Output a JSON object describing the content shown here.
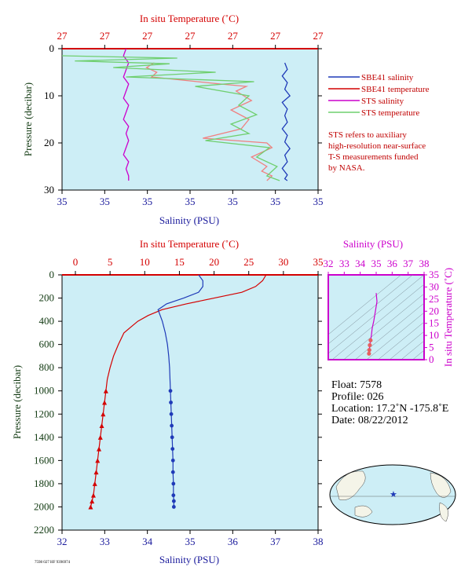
{
  "chart_data": [
    {
      "type": "line",
      "title": "",
      "top_axis_label": "In situ Temperature (˚C)",
      "top_tick_labels": [
        "27",
        "27",
        "27",
        "27",
        "27",
        "27",
        "27"
      ],
      "xlabel": "Salinity (PSU)",
      "bottom_tick_labels": [
        "35",
        "35",
        "35",
        "35",
        "35",
        "35",
        "35"
      ],
      "ylabel": "Pressure (decibar)",
      "ylim": [
        30,
        0
      ],
      "yticks": [
        0,
        10,
        20,
        30
      ],
      "grid": false,
      "series": [
        {
          "name": "SBE41 salinity",
          "color": "#1f3ab8",
          "x_rel": [
            0.87,
            0.88,
            0.86,
            0.88,
            0.87,
            0.89,
            0.86,
            0.88,
            0.87,
            0.88,
            0.86,
            0.88,
            0.87,
            0.89,
            0.87,
            0.88,
            0.86,
            0.88,
            0.87,
            0.88
          ],
          "y": [
            3,
            4.4,
            5.8,
            7.2,
            8.6,
            10,
            11.4,
            12.8,
            14.2,
            15.6,
            17,
            18.4,
            19.8,
            21.2,
            22.6,
            24,
            25.4,
            26.8,
            27.6,
            28
          ]
        },
        {
          "name": "SBE41 temperature",
          "color": "#f08080",
          "x_rel": [
            0.36,
            0.33,
            0.37,
            0.35,
            0.53,
            0.62,
            0.72,
            0.68,
            0.74,
            0.66,
            0.73,
            0.7,
            0.55,
            0.8,
            0.82,
            0.74,
            0.8,
            0.78,
            0.82,
            0.8
          ],
          "y": [
            3,
            4,
            5,
            6,
            7,
            7.5,
            8,
            9,
            11,
            13,
            15,
            17,
            19,
            20,
            21,
            23,
            25,
            26,
            27,
            28
          ]
        },
        {
          "name": "STS salinity",
          "color": "#cc00cc",
          "x_rel": [
            0.25,
            0.24,
            0.26,
            0.25,
            0.24,
            0.26,
            0.25,
            0.24,
            0.26,
            0.25,
            0.24,
            0.26,
            0.25,
            0.26,
            0.25,
            0.24,
            0.26,
            0.25,
            0.26,
            0.26
          ],
          "y": [
            0,
            1.5,
            3,
            4.5,
            6,
            7.5,
            9,
            10.5,
            12,
            13.5,
            15,
            16.5,
            18,
            19.5,
            21,
            22.5,
            24,
            25.5,
            27,
            28
          ]
        },
        {
          "name": "STS temperature",
          "color": "#6fcf6f",
          "x_rel": [
            0.0,
            0.45,
            0.05,
            0.42,
            0.2,
            0.6,
            0.25,
            0.75,
            0.52,
            0.73,
            0.69,
            0.76,
            0.66,
            0.73,
            0.56,
            0.81,
            0.76,
            0.84,
            0.8,
            0.85
          ],
          "y": [
            1.5,
            2,
            2.6,
            3.2,
            4,
            5,
            6,
            7,
            8,
            10,
            12,
            14,
            16,
            18,
            19.5,
            21,
            23,
            25,
            27,
            28
          ]
        }
      ]
    },
    {
      "type": "line",
      "title": "",
      "top_axis_label": "In situ Temperature (˚C)",
      "top_tick_labels": [
        "0",
        "5",
        "10",
        "15",
        "20",
        "25",
        "30",
        "35"
      ],
      "xlim_temperature": [
        0,
        35
      ],
      "xlabel": "Salinity (PSU)",
      "bottom_tick_labels": [
        "32",
        "33",
        "34",
        "35",
        "36",
        "37",
        "38"
      ],
      "xlim_salinity": [
        32,
        38
      ],
      "ylabel": "Pressure (decibar)",
      "ylim": [
        2200,
        0
      ],
      "yticks": [
        0,
        200,
        400,
        600,
        800,
        1000,
        1200,
        1400,
        1600,
        1800,
        2000,
        2200
      ],
      "grid": false,
      "series": [
        {
          "name": "Temperature",
          "color": "#d40000",
          "marker": "triangle",
          "x": [
            27.5,
            27.0,
            26.0,
            24.0,
            20.0,
            16.0,
            12.5,
            10.5,
            9.0,
            8.0,
            7.0,
            6.2,
            5.5,
            5.0,
            4.6,
            4.4,
            4.2,
            4.0,
            3.8,
            3.6,
            3.4,
            3.2,
            3.0,
            2.8,
            2.6,
            2.4,
            2.2
          ],
          "y": [
            0,
            50,
            100,
            150,
            200,
            250,
            300,
            350,
            400,
            450,
            500,
            600,
            700,
            800,
            900,
            1000,
            1100,
            1200,
            1300,
            1400,
            1500,
            1600,
            1700,
            1800,
            1900,
            1950,
            2000
          ]
        },
        {
          "name": "Salinity",
          "color": "#1f3ab8",
          "marker": "circle",
          "x": [
            35.2,
            35.3,
            35.3,
            35.2,
            34.85,
            34.45,
            34.25,
            34.3,
            34.35,
            34.42,
            34.47,
            34.5,
            34.52,
            34.53,
            34.54,
            34.55,
            34.56,
            34.57,
            34.58,
            34.59,
            34.6,
            34.6,
            34.61,
            34.61,
            34.62,
            34.62
          ],
          "y": [
            0,
            50,
            100,
            150,
            200,
            250,
            300,
            350,
            400,
            500,
            600,
            700,
            800,
            900,
            1000,
            1100,
            1200,
            1300,
            1400,
            1500,
            1600,
            1700,
            1800,
            1900,
            1950,
            2000
          ]
        }
      ]
    },
    {
      "type": "scatter",
      "title": "",
      "xlabel": "Salinity (PSU)",
      "x_tick_labels": [
        "32",
        "33",
        "34",
        "35",
        "36",
        "37",
        "38"
      ],
      "xlim": [
        32,
        38
      ],
      "ylabel": "In situ Temperature (˚C)",
      "y_tick_labels": [
        "0",
        "5",
        "10",
        "15",
        "20",
        "25",
        "30",
        "35"
      ],
      "ylim": [
        0,
        35
      ],
      "series": [
        {
          "name": "T-S",
          "color": "#cc00cc",
          "x": [
            35.0,
            35.05,
            34.95,
            34.85,
            34.75,
            34.7,
            34.65,
            34.6,
            34.57,
            34.55
          ],
          "y": [
            27.5,
            24,
            20,
            16,
            13,
            10,
            8,
            6,
            4,
            2.5
          ]
        }
      ]
    }
  ],
  "legend": {
    "items": [
      {
        "label": "SBE41 salinity",
        "color": "#1f3ab8"
      },
      {
        "label": "SBE41 temperature",
        "color": "#d40000"
      },
      {
        "label": "STS salinity",
        "color": "#cc00cc"
      },
      {
        "label": "STS temperature",
        "color": "#6fcf6f"
      }
    ]
  },
  "note_lines": [
    "STS refers to auxiliary",
    "high-resolution near-surface",
    "T-S measurements funded",
    "by NASA."
  ],
  "info": {
    "float": "Float:  7578",
    "profile": "Profile:  026",
    "location": "Location:  17.2˚N  -175.8˚E",
    "date": "Date:  08/22/2012"
  },
  "footer_tag": "7598 027 HF 9396974"
}
